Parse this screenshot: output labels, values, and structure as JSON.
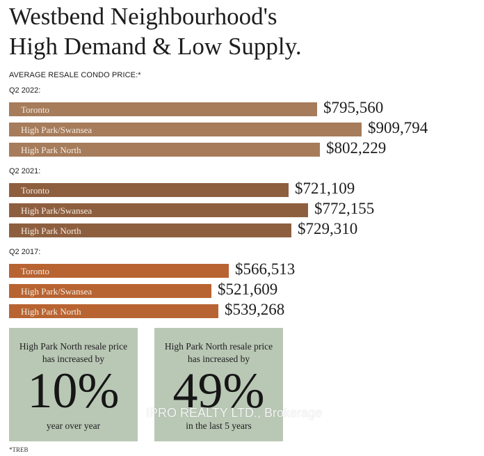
{
  "title_line1": "Westbend Neighbourhood's",
  "title_line2": "High Demand & Low Supply.",
  "chart_data": {
    "type": "bar",
    "title": "AVERAGE RESALE CONDO PRICE:*",
    "orientation": "horizontal",
    "categories": [
      "Toronto",
      "High Park/Swansea",
      "High Park North"
    ],
    "groups": [
      {
        "name": "Q2 2022:",
        "color": "#a67c5b",
        "values": [
          795560,
          909794,
          802229
        ],
        "labels": [
          "$795,560",
          "$909,794",
          "$802,229"
        ]
      },
      {
        "name": "Q2 2021:",
        "color": "#8e5f3f",
        "values": [
          721109,
          772155,
          729310
        ],
        "labels": [
          "$721,109",
          "$772,155",
          "$729,310"
        ]
      },
      {
        "name": "Q2 2017:",
        "color": "#b86432",
        "values": [
          566513,
          521609,
          539268
        ],
        "labels": [
          "$566,513",
          "$521,609",
          "$539,268"
        ]
      }
    ],
    "grid": false
  },
  "stats": [
    {
      "description": "High Park North resale price has increased by",
      "value": "10%",
      "footer": "year over year"
    },
    {
      "description": "High Park North resale price has increased by",
      "value": "49%",
      "footer": "in the last 5 years"
    }
  ],
  "watermark": "IPRO REALTY LTD., Brokerage",
  "source_note": "*TREB",
  "colors": {
    "stat_box": "#b9c7b5",
    "bar_label_text": "#f4ece3"
  }
}
